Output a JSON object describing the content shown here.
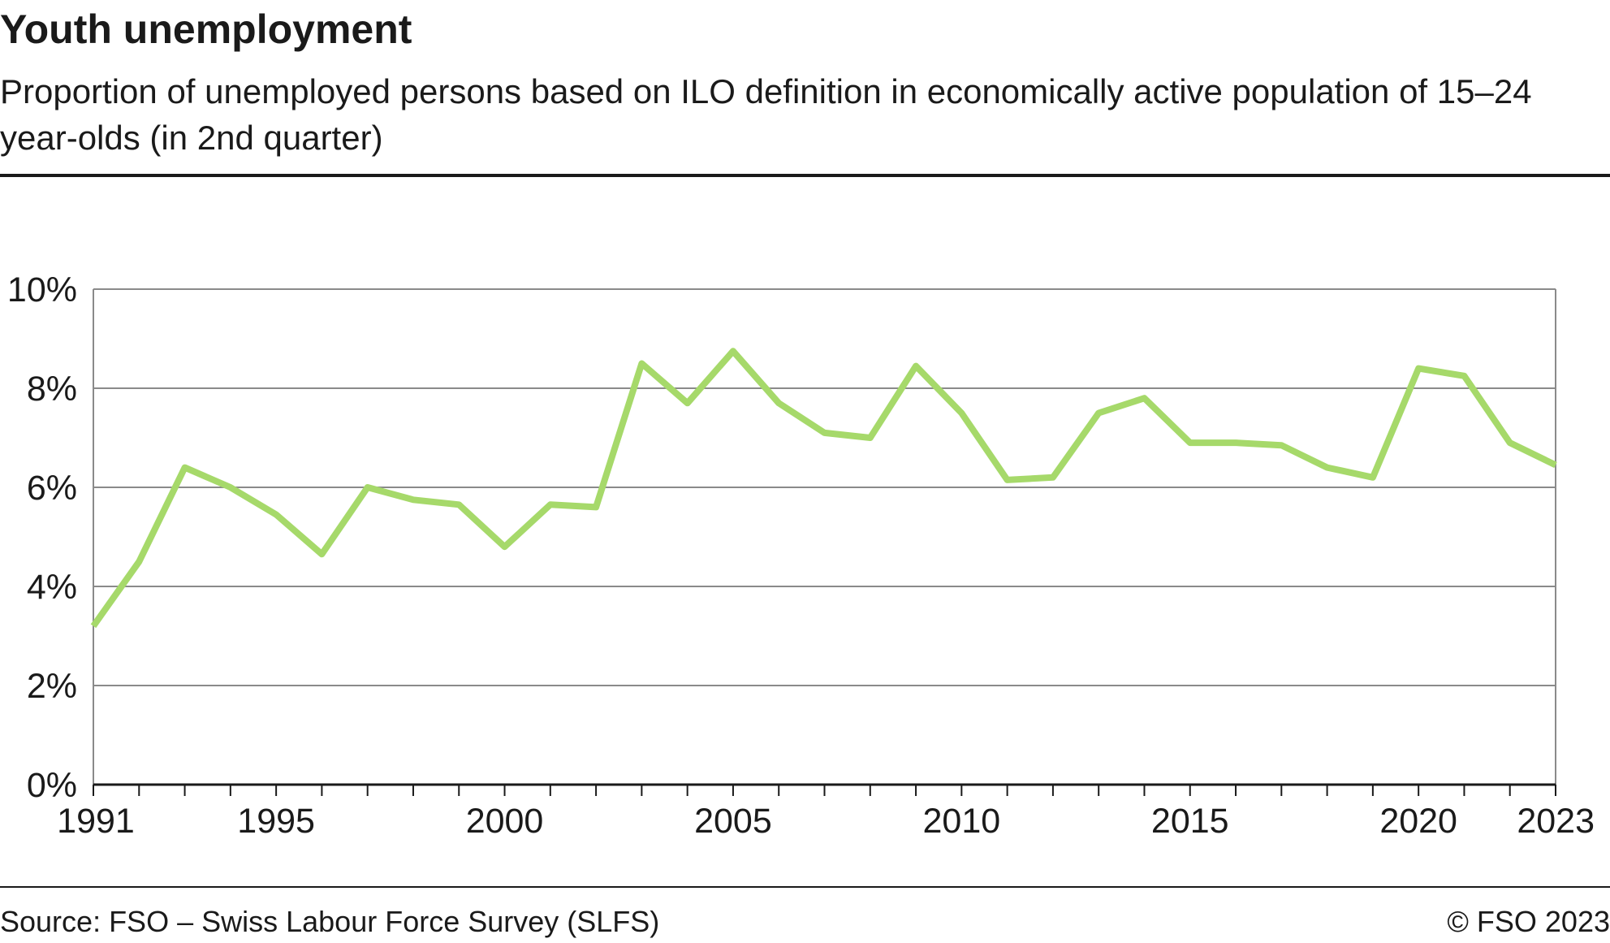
{
  "title": "Youth unemployment",
  "subtitle": "Proportion of unemployed persons based on ILO definition in economically active population of 15–24 year-olds (in 2nd quarter)",
  "footer": {
    "source": "Source: FSO – Swiss Labour Force Survey (SLFS)",
    "copyright": "© FSO 2023"
  },
  "chart_data": {
    "type": "line",
    "x": [
      1991,
      1992,
      1993,
      1994,
      1995,
      1996,
      1997,
      1998,
      1999,
      2000,
      2001,
      2002,
      2003,
      2004,
      2005,
      2006,
      2007,
      2008,
      2009,
      2010,
      2011,
      2012,
      2013,
      2014,
      2015,
      2016,
      2017,
      2018,
      2019,
      2020,
      2021,
      2022,
      2023
    ],
    "series": [
      {
        "values": [
          3.2,
          4.5,
          6.4,
          6.0,
          5.45,
          4.65,
          6.0,
          5.75,
          5.65,
          4.8,
          5.65,
          5.6,
          8.5,
          7.7,
          8.75,
          7.7,
          7.1,
          7.0,
          8.45,
          7.5,
          6.15,
          6.2,
          7.5,
          7.8,
          6.9,
          6.9,
          6.85,
          6.4,
          6.2,
          8.4,
          8.25,
          6.9,
          6.45
        ],
        "color": "#a6d96a"
      }
    ],
    "x_tick_labels": [
      "1991",
      "1995",
      "2000",
      "2005",
      "2010",
      "2015",
      "2020",
      "2023"
    ],
    "y_tick_labels": [
      "0%",
      "2%",
      "4%",
      "6%",
      "8%",
      "10%"
    ],
    "xlim": [
      1991,
      2023
    ],
    "ylim": [
      0,
      10
    ],
    "y_ticks": [
      0,
      2,
      4,
      6,
      8,
      10
    ],
    "grid": "horizontal",
    "legend": "none"
  }
}
